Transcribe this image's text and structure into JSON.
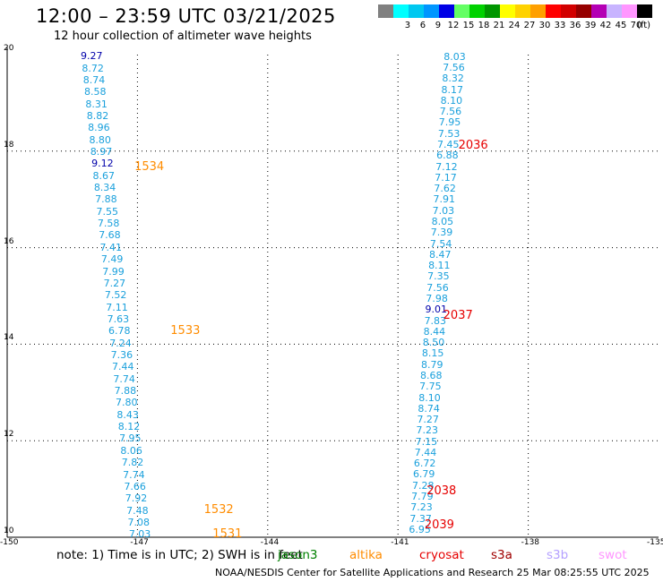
{
  "title": "12:00 – 23:59 UTC 03/21/2025",
  "subtitle": "12 hour collection of altimeter wave heights",
  "color_scale": {
    "unit_label": "(ft)",
    "bins": [
      {
        "label": "",
        "color": "#808080"
      },
      {
        "label": "3",
        "color": "#00ffff"
      },
      {
        "label": "6",
        "color": "#00c8f0"
      },
      {
        "label": "9",
        "color": "#0096ff"
      },
      {
        "label": "12",
        "color": "#0000e6"
      },
      {
        "label": "15",
        "color": "#64ff64"
      },
      {
        "label": "18",
        "color": "#00d200"
      },
      {
        "label": "21",
        "color": "#009600"
      },
      {
        "label": "24",
        "color": "#ffff00"
      },
      {
        "label": "27",
        "color": "#ffd200"
      },
      {
        "label": "30",
        "color": "#ffa000"
      },
      {
        "label": "33",
        "color": "#ff0000"
      },
      {
        "label": "36",
        "color": "#d20000"
      },
      {
        "label": "39",
        "color": "#960000"
      },
      {
        "label": "42",
        "color": "#b400b4"
      },
      {
        "label": "45",
        "color": "#c8b4ff"
      },
      {
        "label": "70",
        "color": "#ff96ff"
      },
      {
        "label": "",
        "color": "#000000"
      }
    ]
  },
  "map": {
    "lon_min": -150,
    "lon_max": -135,
    "lat_min": 10,
    "lat_max": 20,
    "lon_ticks": [
      "-150",
      "-147",
      "-144",
      "-141",
      "-138",
      "-135"
    ],
    "lat_ticks": [
      "20",
      "18",
      "16",
      "14",
      "12",
      "10"
    ],
    "gridline_lons": [
      -147,
      -144,
      -141,
      -138
    ],
    "gridline_lats": [
      18,
      16,
      14,
      12,
      10
    ]
  },
  "tracks": [
    {
      "name": "track-west",
      "start": {
        "lon": -148.06,
        "lat": 19.96
      },
      "end": {
        "lon": -146.95,
        "lat": 10.05
      },
      "values": [
        "9.27",
        "8.72",
        "8.74",
        "8.58",
        "8.31",
        "8.82",
        "8.96",
        "8.80",
        "8.97",
        "9.12",
        "8.67",
        "8.34",
        "7.88",
        "7.55",
        "7.58",
        "7.68",
        "7.41",
        "7.49",
        "7.99",
        "7.27",
        "7.52",
        "7.11",
        "7.63",
        "6.78",
        "7.24",
        "7.36",
        "7.44",
        "7.74",
        "7.88",
        "7.80",
        "8.43",
        "8.12",
        "7.95",
        "8.06",
        "7.82",
        "7.74",
        "7.66",
        "7.92",
        "7.48",
        "7.08",
        "7.03"
      ]
    },
    {
      "name": "track-east",
      "start": {
        "lon": -139.7,
        "lat": 19.95
      },
      "end": {
        "lon": -140.5,
        "lat": 10.15
      },
      "values": [
        "8.03",
        "7.56",
        "8.32",
        "8.17",
        "8.10",
        "7.56",
        "7.95",
        "7.53",
        "7.45",
        "6.88",
        "7.12",
        "7.17",
        "7.62",
        "7.91",
        "7.03",
        "8.05",
        "7.39",
        "7.54",
        "8.47",
        "8.11",
        "7.35",
        "7.56",
        "7.98",
        "9.01",
        "7.83",
        "8.44",
        "8.50",
        "8.15",
        "8.79",
        "8.68",
        "7.75",
        "8.10",
        "8.74",
        "7.27",
        "7.23",
        "7.15",
        "7.44",
        "6.72",
        "6.79",
        "7.28",
        "7.79",
        "7.23",
        "7.37",
        "6.95"
      ]
    }
  ],
  "orbit_labels": [
    {
      "text": "1534",
      "lon": -146.78,
      "lat": 17.66,
      "color": "#ff8c00"
    },
    {
      "text": "1533",
      "lon": -145.95,
      "lat": 14.26,
      "color": "#ff8c00"
    },
    {
      "text": "1532",
      "lon": -145.18,
      "lat": 10.56,
      "color": "#ff8c00"
    },
    {
      "text": "1531",
      "lon": -144.98,
      "lat": 10.06,
      "color": "#ff8c00"
    },
    {
      "text": "2036",
      "lon": -139.32,
      "lat": 18.1,
      "color": "#e60000"
    },
    {
      "text": "2037",
      "lon": -139.67,
      "lat": 14.58,
      "color": "#e60000"
    },
    {
      "text": "2038",
      "lon": -140.05,
      "lat": 10.95,
      "color": "#e60000"
    },
    {
      "text": "2039",
      "lon": -140.1,
      "lat": 10.24,
      "color": "#e60000"
    }
  ],
  "note": "note:  1) Time is in UTC; 2) SWH is in feet",
  "legend": [
    {
      "text": "jason3",
      "color": "#008000"
    },
    {
      "text": "altika",
      "color": "#ff8c00"
    },
    {
      "text": "cryosat",
      "color": "#e60000"
    },
    {
      "text": "s3a",
      "color": "#a00000"
    },
    {
      "text": "s3b",
      "color": "#b4a0ff"
    },
    {
      "text": "swot",
      "color": "#ff96ff"
    }
  ],
  "footer": "NOAA/NESDIS Center for Satellite Applications and Research    25 Mar 08:25:55 UTC 2025"
}
